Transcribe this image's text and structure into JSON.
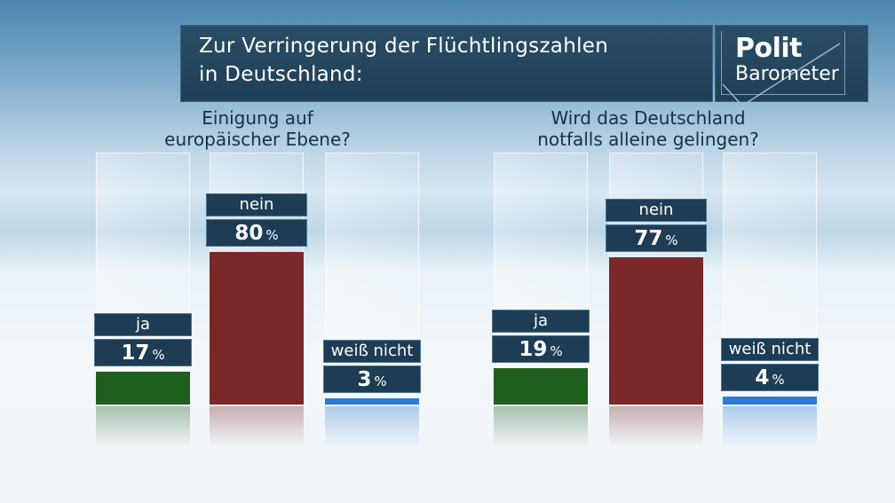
{
  "header": {
    "line1": "Zur Verringerung der Flüchtlingszahlen",
    "line2": "in Deutschland:"
  },
  "logo": {
    "top": "Polit",
    "bottom": "Barometer"
  },
  "colors": {
    "ja": "#1f5e1c",
    "nein": "#7a2828",
    "weiss_nicht": "#2d7ad6",
    "label_bg": "#1e3c53"
  },
  "chart_data": [
    {
      "type": "bar",
      "title": "Einigung auf europäischer Ebene?",
      "title_line1": "Einigung auf",
      "title_line2": "europäischer Ebene?",
      "categories": [
        "ja",
        "nein",
        "weiß nicht"
      ],
      "values": [
        17,
        80,
        3
      ],
      "unit": "%",
      "ylim": [
        0,
        100
      ]
    },
    {
      "type": "bar",
      "title": "Wird das Deutschland notfalls alleine gelingen?",
      "title_line1": "Wird das Deutschland",
      "title_line2": "notfalls alleine gelingen?",
      "categories": [
        "ja",
        "nein",
        "weiß nicht"
      ],
      "values": [
        19,
        77,
        4
      ],
      "unit": "%",
      "ylim": [
        0,
        100
      ]
    }
  ]
}
